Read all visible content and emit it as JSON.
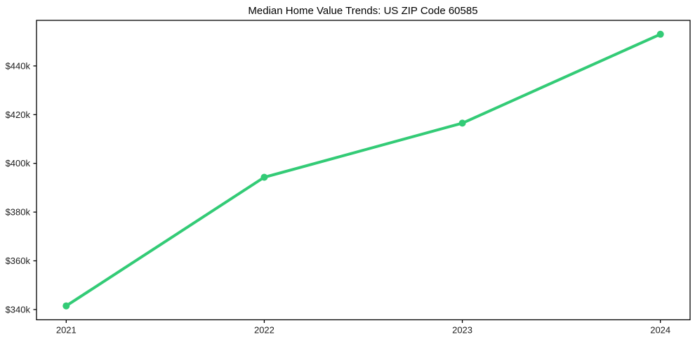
{
  "chart_data": {
    "type": "line",
    "title": "Median Home Value Trends: US ZIP Code 60585",
    "xlabel": "",
    "ylabel": "",
    "x": [
      2021,
      2022,
      2023,
      2024
    ],
    "x_tick_labels": [
      "2021",
      "2022",
      "2023",
      "2024"
    ],
    "series": [
      {
        "name": "median-home-value",
        "values": [
          341500,
          394300,
          416500,
          453000
        ],
        "color": "#33cb76",
        "line_width": 4,
        "marker": "circle",
        "marker_radius": 5
      }
    ],
    "y_ticks": [
      340000,
      360000,
      380000,
      400000,
      420000,
      440000
    ],
    "y_tick_labels": [
      "$340k",
      "$360k",
      "$380k",
      "$400k",
      "$420k",
      "$440k"
    ],
    "xlim": [
      2020.85,
      2024.15
    ],
    "ylim": [
      335800,
      458700
    ],
    "grid": false,
    "legend": "none",
    "axis_color": "#000000",
    "tick_label_color": "#1c1c1c",
    "background_color": "#ffffff"
  }
}
